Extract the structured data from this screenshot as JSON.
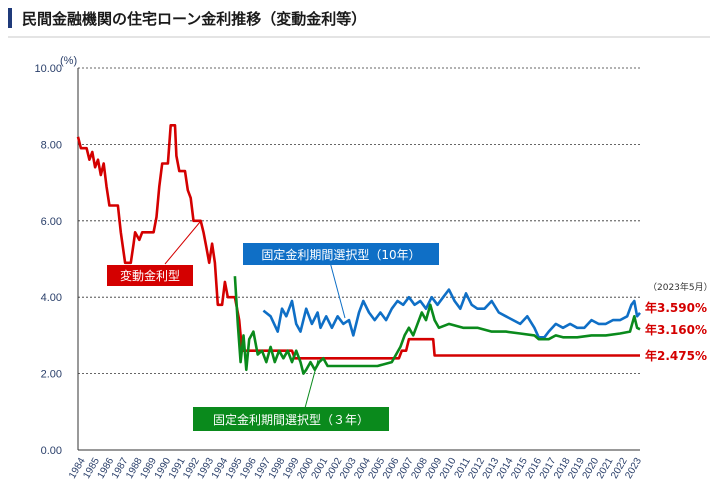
{
  "header": {
    "title": "民間金融機関の住宅ローン金利推移（変動金利等）",
    "accent_color": "#1f3a7a"
  },
  "chart_data": {
    "type": "line",
    "title": "民間金融機関の住宅ローン金利推移（変動金利等）",
    "yunit": "(%)",
    "ylim": [
      0,
      10
    ],
    "yticks": [
      "0.00",
      "2.00",
      "4.00",
      "6.00",
      "8.00",
      "10.00"
    ],
    "xlim": [
      1984,
      2023.4
    ],
    "xticks": [
      "1984",
      "1985",
      "1986",
      "1987",
      "1988",
      "1989",
      "1990",
      "1991",
      "1992",
      "1993",
      "1994",
      "1995",
      "1996",
      "1997",
      "1998",
      "1999",
      "2000",
      "2001",
      "2002",
      "2003",
      "2004",
      "2005",
      "2006",
      "2007",
      "2008",
      "2009",
      "2010",
      "2011",
      "2012",
      "2013",
      "2014",
      "2015",
      "2016",
      "2017",
      "2018",
      "2019",
      "2020",
      "2021",
      "2022",
      "2023"
    ],
    "grid": true,
    "date_note": "（2023年5月）",
    "series": [
      {
        "name": "変動金利型",
        "color": "#d40000",
        "end_label": "年2.475%",
        "points": [
          [
            1984.0,
            8.2
          ],
          [
            1984.2,
            7.9
          ],
          [
            1984.6,
            7.9
          ],
          [
            1984.8,
            7.6
          ],
          [
            1985.0,
            7.8
          ],
          [
            1985.2,
            7.4
          ],
          [
            1985.4,
            7.6
          ],
          [
            1985.6,
            7.2
          ],
          [
            1985.8,
            7.5
          ],
          [
            1986.0,
            6.9
          ],
          [
            1986.2,
            6.4
          ],
          [
            1986.8,
            6.4
          ],
          [
            1987.0,
            5.7
          ],
          [
            1987.3,
            4.9
          ],
          [
            1987.7,
            4.9
          ],
          [
            1987.9,
            5.4
          ],
          [
            1988.0,
            5.7
          ],
          [
            1988.3,
            5.5
          ],
          [
            1988.5,
            5.7
          ],
          [
            1989.3,
            5.7
          ],
          [
            1989.5,
            6.1
          ],
          [
            1989.7,
            6.9
          ],
          [
            1989.9,
            7.5
          ],
          [
            1990.3,
            7.5
          ],
          [
            1990.5,
            8.5
          ],
          [
            1990.8,
            8.5
          ],
          [
            1990.9,
            7.7
          ],
          [
            1991.1,
            7.3
          ],
          [
            1991.5,
            7.3
          ],
          [
            1991.7,
            6.8
          ],
          [
            1991.9,
            6.6
          ],
          [
            1992.1,
            6.0
          ],
          [
            1992.6,
            6.0
          ],
          [
            1992.8,
            5.7
          ],
          [
            1993.0,
            5.3
          ],
          [
            1993.2,
            4.9
          ],
          [
            1993.4,
            5.4
          ],
          [
            1993.6,
            4.9
          ],
          [
            1993.8,
            3.8
          ],
          [
            1994.1,
            3.8
          ],
          [
            1994.3,
            4.4
          ],
          [
            1994.5,
            4.0
          ],
          [
            1995.0,
            4.0
          ],
          [
            1995.3,
            3.4
          ],
          [
            1995.5,
            2.6
          ],
          [
            1995.8,
            2.6
          ],
          [
            1996.0,
            2.6
          ],
          [
            1999.0,
            2.6
          ],
          [
            1999.2,
            2.4
          ],
          [
            2006.5,
            2.4
          ],
          [
            2006.7,
            2.6
          ],
          [
            2007.0,
            2.6
          ],
          [
            2007.2,
            2.9
          ],
          [
            2008.9,
            2.9
          ],
          [
            2009.0,
            2.475
          ],
          [
            2023.4,
            2.475
          ]
        ]
      },
      {
        "name": "固定金利期間選択型（10年）",
        "color": "#0f6fc6",
        "end_label": "年3.590%",
        "points": [
          [
            1997.0,
            3.65
          ],
          [
            1997.5,
            3.5
          ],
          [
            1998.0,
            3.1
          ],
          [
            1998.3,
            3.7
          ],
          [
            1998.6,
            3.5
          ],
          [
            1999.0,
            3.9
          ],
          [
            1999.3,
            3.3
          ],
          [
            1999.6,
            3.1
          ],
          [
            2000.0,
            3.7
          ],
          [
            2000.4,
            3.3
          ],
          [
            2000.8,
            3.6
          ],
          [
            2001.0,
            3.2
          ],
          [
            2001.4,
            3.5
          ],
          [
            2001.8,
            3.2
          ],
          [
            2002.2,
            3.5
          ],
          [
            2002.6,
            3.3
          ],
          [
            2003.0,
            3.4
          ],
          [
            2003.3,
            3.0
          ],
          [
            2003.7,
            3.6
          ],
          [
            2004.0,
            3.9
          ],
          [
            2004.4,
            3.6
          ],
          [
            2004.8,
            3.4
          ],
          [
            2005.2,
            3.6
          ],
          [
            2005.6,
            3.4
          ],
          [
            2006.0,
            3.7
          ],
          [
            2006.4,
            3.9
          ],
          [
            2006.8,
            3.8
          ],
          [
            2007.2,
            4.0
          ],
          [
            2007.6,
            3.8
          ],
          [
            2008.0,
            3.9
          ],
          [
            2008.4,
            3.7
          ],
          [
            2008.8,
            4.0
          ],
          [
            2009.2,
            3.8
          ],
          [
            2009.6,
            4.0
          ],
          [
            2010.0,
            4.2
          ],
          [
            2010.4,
            3.9
          ],
          [
            2010.8,
            3.7
          ],
          [
            2011.2,
            4.1
          ],
          [
            2011.6,
            3.8
          ],
          [
            2012.0,
            3.7
          ],
          [
            2012.5,
            3.7
          ],
          [
            2013.0,
            3.9
          ],
          [
            2013.5,
            3.6
          ],
          [
            2014.0,
            3.5
          ],
          [
            2014.5,
            3.4
          ],
          [
            2015.0,
            3.3
          ],
          [
            2015.5,
            3.5
          ],
          [
            2016.0,
            3.2
          ],
          [
            2016.3,
            2.95
          ],
          [
            2016.7,
            2.95
          ],
          [
            2017.0,
            3.1
          ],
          [
            2017.5,
            3.3
          ],
          [
            2018.0,
            3.2
          ],
          [
            2018.5,
            3.3
          ],
          [
            2019.0,
            3.2
          ],
          [
            2019.5,
            3.2
          ],
          [
            2020.0,
            3.4
          ],
          [
            2020.5,
            3.3
          ],
          [
            2021.0,
            3.3
          ],
          [
            2021.5,
            3.4
          ],
          [
            2022.0,
            3.4
          ],
          [
            2022.5,
            3.5
          ],
          [
            2022.8,
            3.8
          ],
          [
            2023.0,
            3.9
          ],
          [
            2023.2,
            3.5
          ],
          [
            2023.4,
            3.59
          ]
        ]
      },
      {
        "name": "固定金利期間選択型（３年）",
        "color": "#0a8a1c",
        "end_label": "年3.160%",
        "points": [
          [
            1995.0,
            4.55
          ],
          [
            1995.2,
            3.3
          ],
          [
            1995.4,
            2.3
          ],
          [
            1995.6,
            3.0
          ],
          [
            1995.8,
            2.1
          ],
          [
            1996.0,
            2.9
          ],
          [
            1996.3,
            3.1
          ],
          [
            1996.6,
            2.5
          ],
          [
            1996.9,
            2.6
          ],
          [
            1997.2,
            2.3
          ],
          [
            1997.5,
            2.7
          ],
          [
            1997.8,
            2.3
          ],
          [
            1998.1,
            2.6
          ],
          [
            1998.4,
            2.4
          ],
          [
            1998.7,
            2.6
          ],
          [
            1999.0,
            2.3
          ],
          [
            1999.3,
            2.6
          ],
          [
            1999.6,
            2.3
          ],
          [
            1999.8,
            2.0
          ],
          [
            2000.0,
            2.1
          ],
          [
            2000.3,
            2.3
          ],
          [
            2000.6,
            2.1
          ],
          [
            2000.9,
            2.3
          ],
          [
            2001.2,
            2.4
          ],
          [
            2001.5,
            2.2
          ],
          [
            2002.0,
            2.2
          ],
          [
            2003.0,
            2.2
          ],
          [
            2004.0,
            2.2
          ],
          [
            2005.0,
            2.2
          ],
          [
            2006.0,
            2.3
          ],
          [
            2006.3,
            2.5
          ],
          [
            2006.6,
            2.7
          ],
          [
            2006.9,
            3.0
          ],
          [
            2007.2,
            3.2
          ],
          [
            2007.5,
            3.0
          ],
          [
            2007.8,
            3.3
          ],
          [
            2008.1,
            3.6
          ],
          [
            2008.4,
            3.4
          ],
          [
            2008.7,
            3.8
          ],
          [
            2009.0,
            3.4
          ],
          [
            2009.3,
            3.2
          ],
          [
            2010.0,
            3.3
          ],
          [
            2011.0,
            3.2
          ],
          [
            2012.0,
            3.2
          ],
          [
            2013.0,
            3.1
          ],
          [
            2014.0,
            3.1
          ],
          [
            2015.0,
            3.05
          ],
          [
            2016.0,
            3.0
          ],
          [
            2016.3,
            2.9
          ],
          [
            2017.0,
            2.9
          ],
          [
            2017.5,
            3.0
          ],
          [
            2018.0,
            2.95
          ],
          [
            2019.0,
            2.95
          ],
          [
            2020.0,
            3.0
          ],
          [
            2021.0,
            3.0
          ],
          [
            2022.0,
            3.05
          ],
          [
            2022.7,
            3.1
          ],
          [
            2023.0,
            3.5
          ],
          [
            2023.2,
            3.2
          ],
          [
            2023.4,
            3.16
          ]
        ]
      }
    ]
  }
}
